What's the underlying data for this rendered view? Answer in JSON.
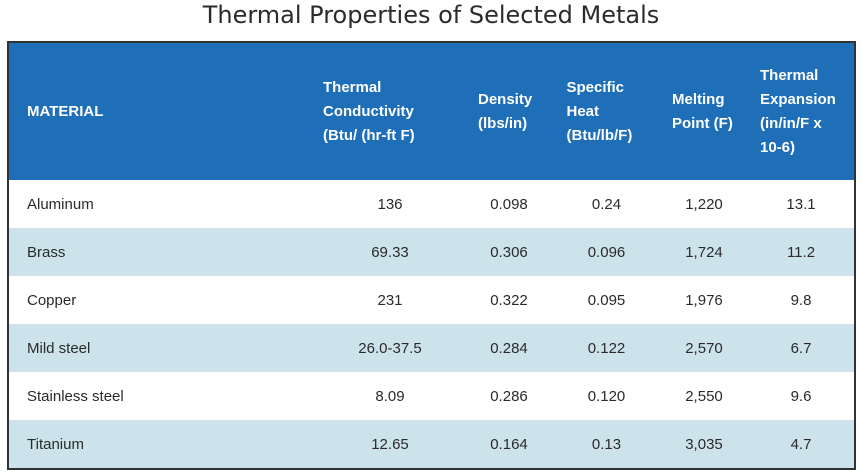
{
  "title": "Thermal Properties of Selected Metals",
  "colors": {
    "header_bg": "#1e6fb8",
    "row_alt_bg": "#cde3ec",
    "row_bg": "#ffffff",
    "border": "#2f3335"
  },
  "table": {
    "headers": [
      "MATERIAL",
      "Thermal Conductivity (Btu/ (hr-ft F)",
      "Density (lbs/in)",
      "Specific Heat (Btu/lb/F)",
      "Melting Point (F)",
      "Thermal Expansion (in/in/F x 10-6)"
    ],
    "rows": [
      [
        "Aluminum",
        "136",
        "0.098",
        "0.24",
        "1,220",
        "13.1"
      ],
      [
        "Brass",
        "69.33",
        "0.306",
        "0.096",
        "1,724",
        "11.2"
      ],
      [
        "Copper",
        "231",
        "0.322",
        "0.095",
        "1,976",
        "9.8"
      ],
      [
        "Mild steel",
        "26.0-37.5",
        "0.284",
        "0.122",
        "2,570",
        "6.7"
      ],
      [
        "Stainless steel",
        "8.09",
        "0.286",
        "0.120",
        "2,550",
        "9.6"
      ],
      [
        "Titanium",
        "12.65",
        "0.164",
        "0.13",
        "3,035",
        "4.7"
      ]
    ]
  }
}
